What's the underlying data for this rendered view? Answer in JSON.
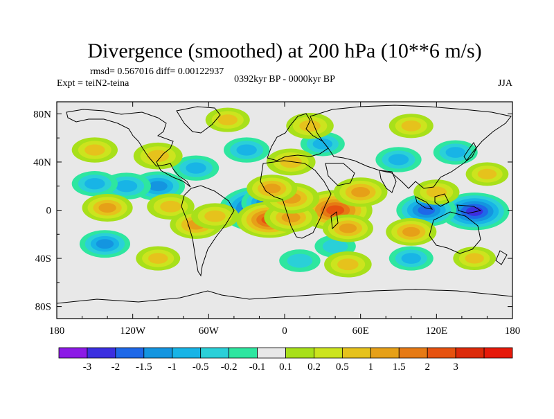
{
  "chart_data": {
    "type": "contour-map",
    "title": "Divergence (smoothed) at 200 hPa (10**6 m/s)",
    "stats": "rmsd= 0.567016 diff= 0.00122937",
    "expt": "Expt = teiN2-teina",
    "period": "0392kyr BP - 0000kyr BP",
    "season": "JJA",
    "xlim": [
      -180,
      180
    ],
    "ylim": [
      -90,
      90
    ],
    "x_ticks": [
      {
        "value": -180,
        "label": "180"
      },
      {
        "value": -120,
        "label": "120W"
      },
      {
        "value": -60,
        "label": "60W"
      },
      {
        "value": 0,
        "label": "0"
      },
      {
        "value": 60,
        "label": "60E"
      },
      {
        "value": 120,
        "label": "120E"
      },
      {
        "value": 180,
        "label": "180"
      }
    ],
    "y_ticks": [
      {
        "value": 80,
        "label": "80N"
      },
      {
        "value": 40,
        "label": "40N"
      },
      {
        "value": 0,
        "label": "0"
      },
      {
        "value": -40,
        "label": "40S"
      },
      {
        "value": -80,
        "label": "80S"
      }
    ],
    "colorbar": {
      "colors": [
        "#8c1ae6",
        "#3b2fe0",
        "#1e68e8",
        "#1495e0",
        "#18b4e6",
        "#2ad0d8",
        "#2ee6a0",
        "#e8e8e8",
        "#a8e01a",
        "#cce41e",
        "#e6c21c",
        "#e6a018",
        "#e67a14",
        "#e6520f",
        "#dc2a0a",
        "#e6190a"
      ],
      "labels": [
        "-3",
        "-2",
        "-1.5",
        "-1",
        "-0.5",
        "-0.2",
        "-0.1",
        "0.1",
        "0.2",
        "0.5",
        "1",
        "1.5",
        "2",
        "3"
      ]
    },
    "anomalies": [
      {
        "lon": -18,
        "lat": 1,
        "value": -3.2
      },
      {
        "lon": -8,
        "lat": 6,
        "value": -2.0
      },
      {
        "lon": 150,
        "lat": -1,
        "value": -2.2
      },
      {
        "lon": 112,
        "lat": 0,
        "value": -1.6
      },
      {
        "lon": -100,
        "lat": 20,
        "value": -1.2
      },
      {
        "lon": -125,
        "lat": 20,
        "value": -0.9
      },
      {
        "lon": -150,
        "lat": 22,
        "value": -0.7
      },
      {
        "lon": -142,
        "lat": -28,
        "value": -1.0
      },
      {
        "lon": -70,
        "lat": 35,
        "value": -0.7
      },
      {
        "lon": -30,
        "lat": 50,
        "value": -0.7
      },
      {
        "lon": 30,
        "lat": 55,
        "value": -0.6
      },
      {
        "lon": 90,
        "lat": 42,
        "value": -0.7
      },
      {
        "lon": 135,
        "lat": 48,
        "value": -0.6
      },
      {
        "lon": 12,
        "lat": -42,
        "value": -0.4
      },
      {
        "lon": 40,
        "lat": -30,
        "value": -0.4
      },
      {
        "lon": 100,
        "lat": -40,
        "value": -0.6
      },
      {
        "lon": 40,
        "lat": 0,
        "value": 2.5
      },
      {
        "lon": -12,
        "lat": -8,
        "value": 2.0
      },
      {
        "lon": 5,
        "lat": -6,
        "value": 1.2
      },
      {
        "lon": 5,
        "lat": 10,
        "value": 1.4
      },
      {
        "lon": -10,
        "lat": 18,
        "value": 1.0
      },
      {
        "lon": 60,
        "lat": 15,
        "value": 1.2
      },
      {
        "lon": 50,
        "lat": -15,
        "value": 1.0
      },
      {
        "lon": -140,
        "lat": 2,
        "value": 1.0
      },
      {
        "lon": -90,
        "lat": 3,
        "value": 0.8
      },
      {
        "lon": -70,
        "lat": -12,
        "value": 1.1
      },
      {
        "lon": -55,
        "lat": -5,
        "value": 0.8
      },
      {
        "lon": 100,
        "lat": -18,
        "value": 1.0
      },
      {
        "lon": 120,
        "lat": 15,
        "value": 0.7
      },
      {
        "lon": -100,
        "lat": 45,
        "value": 0.9
      },
      {
        "lon": -45,
        "lat": 75,
        "value": 0.6
      },
      {
        "lon": 20,
        "lat": 70,
        "value": 0.8
      },
      {
        "lon": 100,
        "lat": 70,
        "value": 0.6
      },
      {
        "lon": -150,
        "lat": 50,
        "value": 0.7
      },
      {
        "lon": 5,
        "lat": 40,
        "value": 0.9
      },
      {
        "lon": 160,
        "lat": 30,
        "value": 0.5
      },
      {
        "lon": 50,
        "lat": -45,
        "value": 0.8
      },
      {
        "lon": -100,
        "lat": -40,
        "value": 0.6
      },
      {
        "lon": 150,
        "lat": -40,
        "value": 0.5
      }
    ]
  }
}
